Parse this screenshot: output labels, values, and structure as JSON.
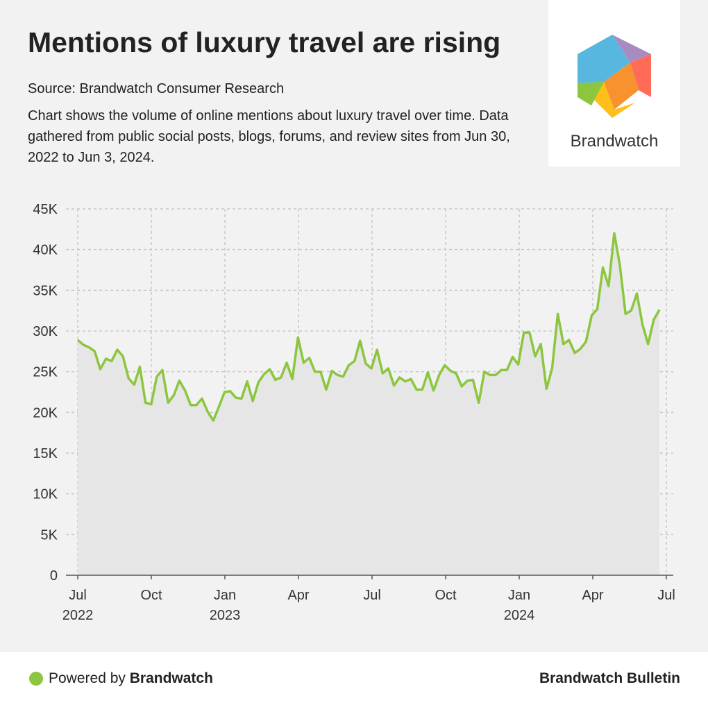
{
  "header": {
    "title": "Mentions of luxury travel are rising",
    "source": "Source: Brandwatch Consumer Research",
    "description": "Chart shows the volume of online mentions about luxury travel over time. Data gathered from public social posts, blogs, forums, and review sites from Jun 30, 2022 to Jun 3, 2024."
  },
  "logo": {
    "text": "Brandwatch",
    "colors": [
      "#58b7de",
      "#a68cc0",
      "#ff6b57",
      "#f7922e",
      "#fdbf18",
      "#8cc63f"
    ]
  },
  "footer": {
    "powered_prefix": "Powered by ",
    "powered_brand": "Brandwatch",
    "bulletin": "Brandwatch Bulletin"
  },
  "chart_data": {
    "type": "area",
    "title": "Mentions of luxury travel are rising",
    "xlabel": "",
    "ylabel": "",
    "ylim": [
      0,
      45000
    ],
    "y_ticks": [
      "0",
      "5K",
      "10K",
      "15K",
      "20K",
      "25K",
      "30K",
      "35K",
      "40K",
      "45K"
    ],
    "x_ticks": [
      {
        "line1": "Jul",
        "line2": "2022"
      },
      {
        "line1": "Oct",
        "line2": ""
      },
      {
        "line1": "Jan",
        "line2": "2023"
      },
      {
        "line1": "Apr",
        "line2": ""
      },
      {
        "line1": "Jul",
        "line2": ""
      },
      {
        "line1": "Oct",
        "line2": ""
      },
      {
        "line1": "Jan",
        "line2": "2024"
      },
      {
        "line1": "Apr",
        "line2": ""
      },
      {
        "line1": "Jul",
        "line2": ""
      }
    ],
    "grid": true,
    "line_color": "#8cc63f",
    "fill_color": "#e6e6e6",
    "frequency": "weekly",
    "values": [
      28900,
      28300,
      28000,
      27500,
      25300,
      26600,
      26300,
      27700,
      26900,
      24200,
      23400,
      25600,
      21200,
      21000,
      24400,
      25200,
      21200,
      22100,
      23900,
      22700,
      20900,
      20900,
      21700,
      20100,
      19000,
      20700,
      22500,
      22600,
      21800,
      21700,
      23800,
      21400,
      23700,
      24700,
      25300,
      24000,
      24300,
      26100,
      24100,
      29200,
      26100,
      26700,
      25000,
      25000,
      22800,
      25100,
      24600,
      24400,
      25800,
      26300,
      28800,
      26000,
      25400,
      27700,
      24800,
      25400,
      23300,
      24300,
      23800,
      24100,
      22800,
      22800,
      24900,
      22700,
      24600,
      25800,
      25100,
      24800,
      23200,
      23900,
      24000,
      21200,
      25000,
      24600,
      24600,
      25200,
      25200,
      26800,
      25900,
      29800,
      29800,
      26900,
      28400,
      22900,
      25400,
      32100,
      28400,
      28900,
      27300,
      27800,
      28700,
      31900,
      32700,
      37800,
      35500,
      42000,
      38100,
      32100,
      32500,
      34600,
      30800,
      28400,
      31400,
      32600
    ]
  }
}
